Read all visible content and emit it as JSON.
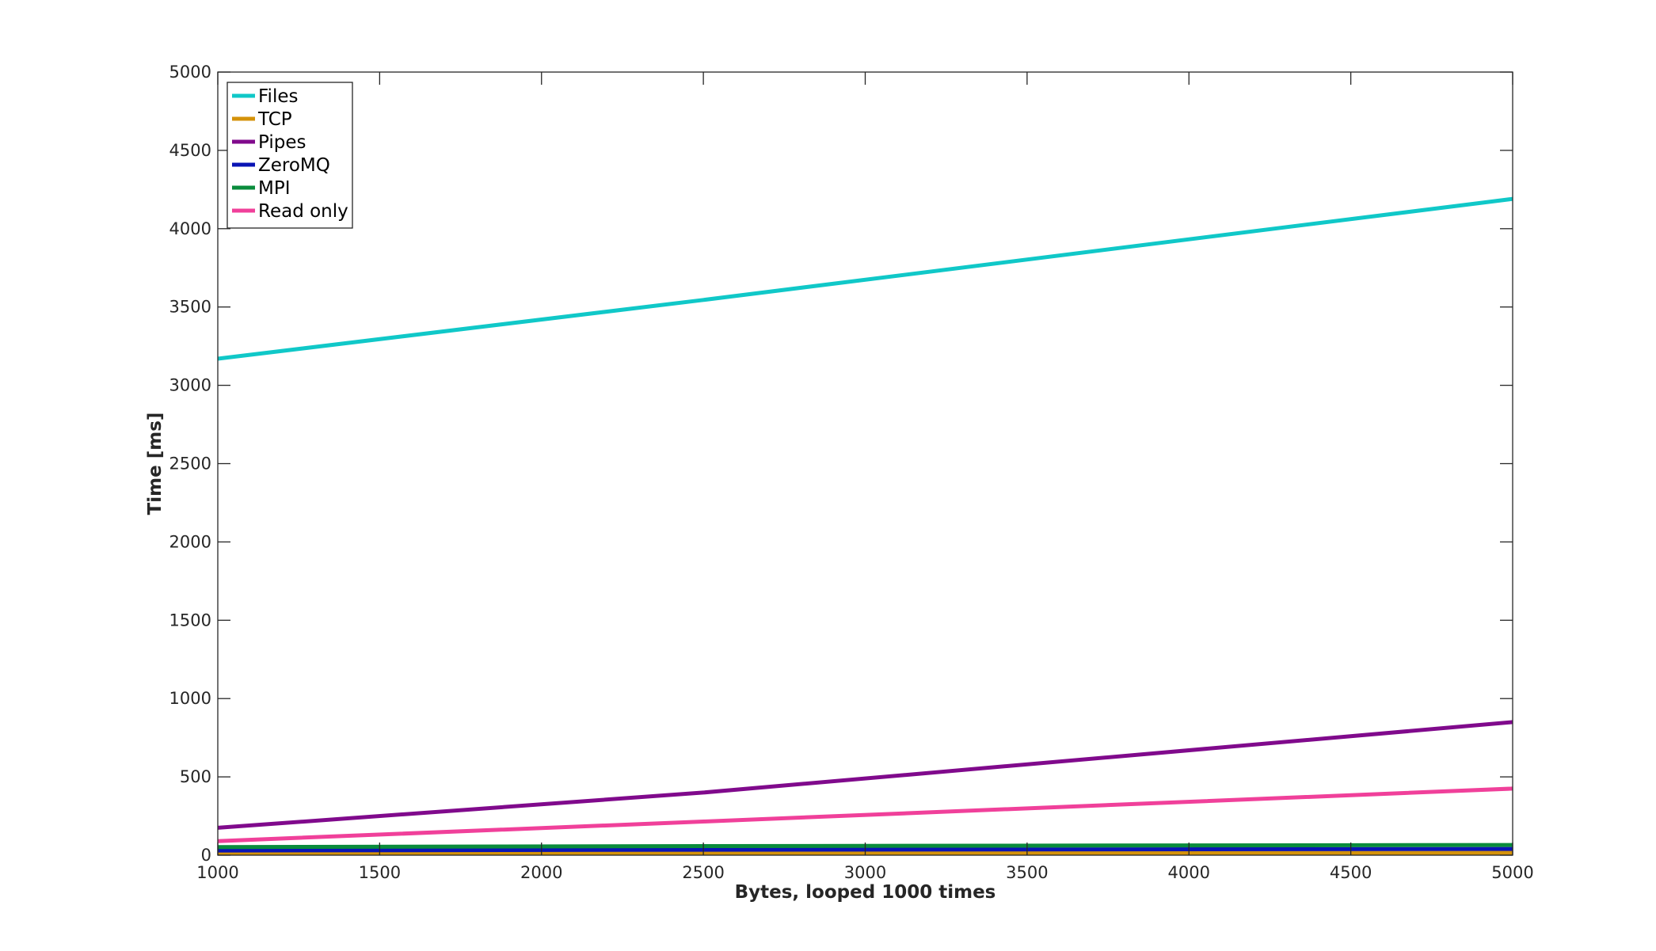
{
  "chart_data": {
    "type": "line",
    "title": "",
    "xlabel": "Bytes, looped 1000 times",
    "ylabel": "Time [ms]",
    "xlim": [
      1000,
      5000
    ],
    "ylim": [
      0,
      5000
    ],
    "xticks": [
      1000,
      1500,
      2000,
      2500,
      3000,
      3500,
      4000,
      4500,
      5000
    ],
    "yticks": [
      0,
      500,
      1000,
      1500,
      2000,
      2500,
      3000,
      3500,
      4000,
      4500,
      5000
    ],
    "grid": false,
    "legend_position": "top-left",
    "x": [
      1000,
      2500,
      5000
    ],
    "series": [
      {
        "name": "Files",
        "color": "#10c8c8",
        "values": [
          3170,
          3545,
          4190
        ]
      },
      {
        "name": "TCP",
        "color": "#d4920a",
        "values": [
          10,
          12,
          15
        ]
      },
      {
        "name": "Pipes",
        "color": "#800a8c",
        "values": [
          175,
          400,
          850
        ]
      },
      {
        "name": "ZeroMQ",
        "color": "#0a14b4",
        "values": [
          30,
          35,
          40
        ]
      },
      {
        "name": "MPI",
        "color": "#0a8c3c",
        "values": [
          52,
          58,
          65
        ]
      },
      {
        "name": "Read only",
        "color": "#f0409a",
        "values": [
          90,
          215,
          425
        ]
      }
    ]
  }
}
